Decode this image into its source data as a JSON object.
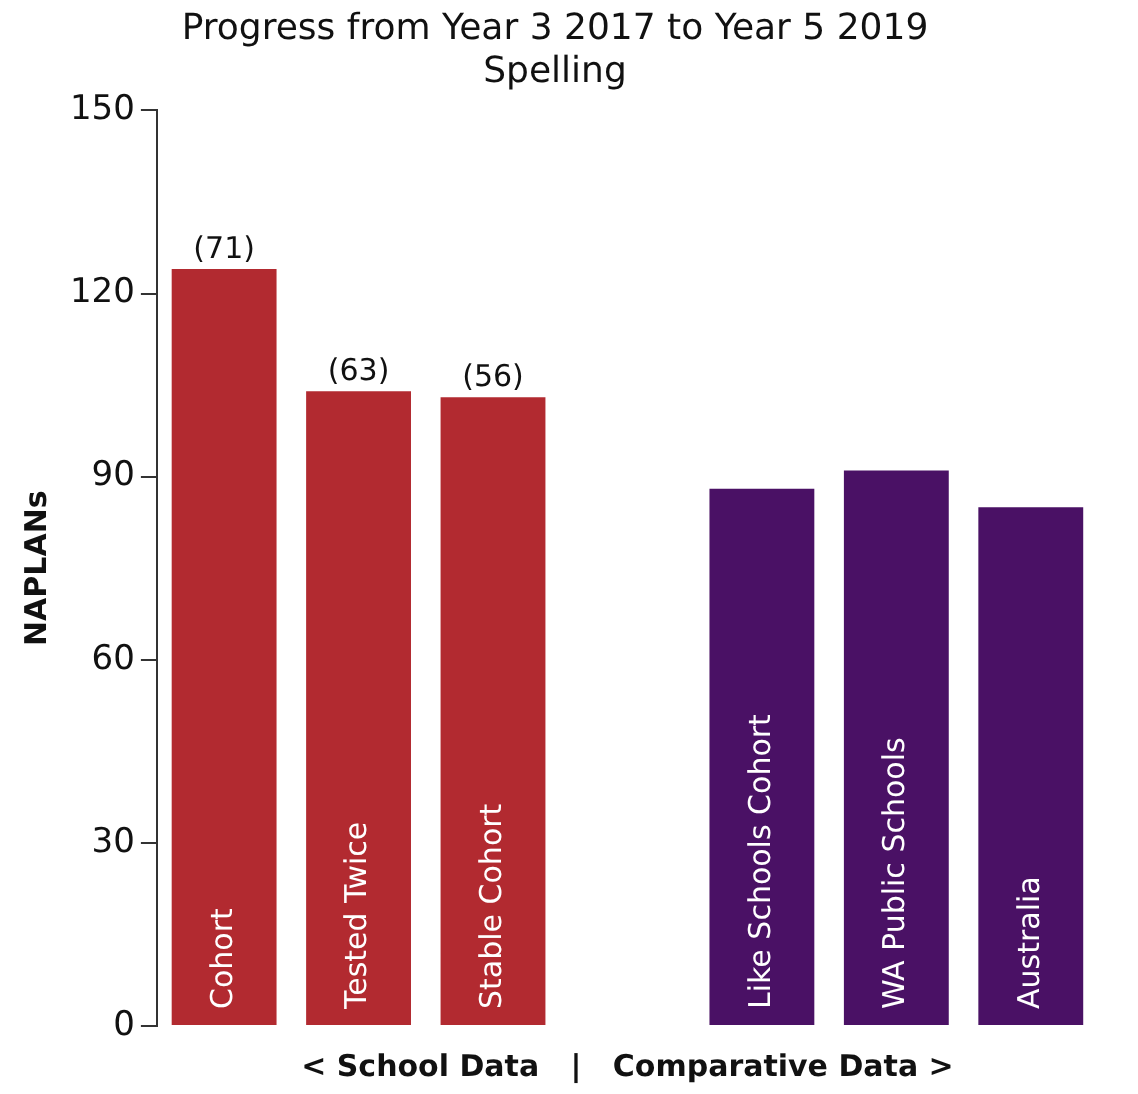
{
  "chart_data": {
    "type": "bar",
    "title": "Progress from Year 3 2017 to Year 5 2019",
    "subtitle": "Spelling",
    "ylabel": "NAPLANs",
    "xlabel": "< School Data   |   Comparative Data >",
    "categories": [
      "Cohort",
      "Tested Twice",
      "Stable Cohort",
      null,
      "Like Schools Cohort",
      "WA Public Schools",
      "Australia"
    ],
    "values": [
      124,
      104,
      103,
      null,
      88,
      91,
      85
    ],
    "colors": [
      "#b22a30",
      "#b22a30",
      "#b22a30",
      null,
      "#4a1165",
      "#4a1165",
      "#4a1165"
    ],
    "annotations": [
      {
        "text": "(71)",
        "x": "Cohort",
        "y": 124
      },
      {
        "text": "(63)",
        "x": "Tested Twice",
        "y": 104
      },
      {
        "text": "(56)",
        "x": "Stable Cohort",
        "y": 103
      }
    ],
    "ylim": [
      0,
      150
    ],
    "yticks": [
      0,
      30,
      60,
      90,
      120,
      150
    ],
    "grid": false,
    "legend": false
  }
}
